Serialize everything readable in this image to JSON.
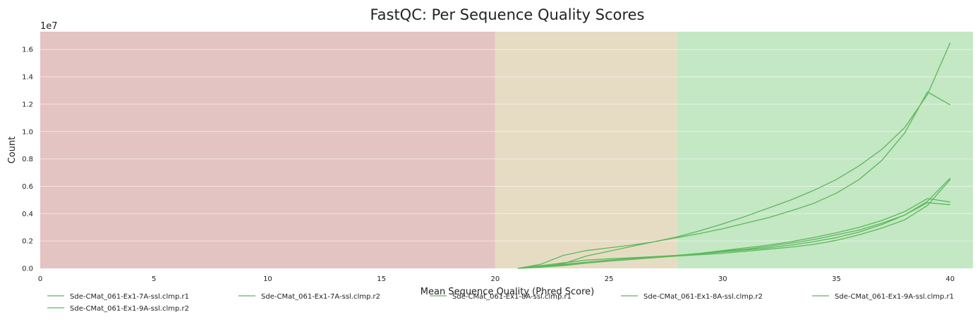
{
  "chart_data": {
    "type": "line",
    "title": "FastQC: Per Sequence Quality Scores",
    "xlabel": "Mean Sequence Quality (Phred Score)",
    "ylabel": "Count",
    "y_offset_label": "1e7",
    "xlim": [
      0,
      41
    ],
    "ylim": [
      0,
      17300000
    ],
    "x_ticks": [
      0,
      5,
      10,
      15,
      20,
      25,
      30,
      35,
      40
    ],
    "y_ticks": [
      0,
      2000000,
      4000000,
      6000000,
      8000000,
      10000000,
      12000000,
      14000000,
      16000000
    ],
    "y_tick_labels": [
      "0.0",
      "0.2",
      "0.4",
      "0.6",
      "0.8",
      "1.0",
      "1.2",
      "1.4",
      "1.6"
    ],
    "grid": true,
    "legend_position": "bottom",
    "background_bands": [
      {
        "from": 0,
        "to": 20,
        "color": "#e4c3c3"
      },
      {
        "from": 20,
        "to": 28,
        "color": "#e6dcc4"
      },
      {
        "from": 28,
        "to": 41,
        "color": "#c4e7c4"
      }
    ],
    "line_color": "#5cb85c",
    "series": [
      {
        "name": "Sde-CMat_061-Ex1-7A-ssl.clmp.r1",
        "x": [
          21,
          22,
          23,
          24,
          25,
          26,
          27,
          28,
          29,
          30,
          31,
          32,
          33,
          34,
          35,
          36,
          37,
          38,
          39,
          40
        ],
        "y": [
          0,
          200000,
          400000,
          600000,
          700000,
          780000,
          860000,
          950000,
          1050000,
          1200000,
          1350000,
          1500000,
          1700000,
          1950000,
          2250000,
          2650000,
          3200000,
          3900000,
          4900000,
          6600000
        ]
      },
      {
        "name": "Sde-CMat_061-Ex1-7A-ssl.clmp.r2",
        "x": [
          21,
          22,
          23,
          24,
          25,
          26,
          27,
          28,
          29,
          30,
          31,
          32,
          33,
          34,
          35,
          36,
          37,
          38,
          39,
          40
        ],
        "y": [
          0,
          150000,
          300000,
          450000,
          600000,
          720000,
          820000,
          900000,
          1000000,
          1100000,
          1250000,
          1400000,
          1550000,
          1750000,
          2050000,
          2450000,
          2950000,
          3550000,
          4600000,
          6500000
        ]
      },
      {
        "name": "Sde-CMat_061-Ex1-8A-ssl.clmp.r1",
        "x": [
          21,
          22,
          23,
          24,
          25,
          26,
          27,
          28,
          29,
          30,
          31,
          32,
          33,
          34,
          35,
          36,
          37,
          38,
          39,
          40
        ],
        "y": [
          0,
          100000,
          350000,
          900000,
          1250000,
          1600000,
          1950000,
          2300000,
          2750000,
          3250000,
          3800000,
          4400000,
          5000000,
          5700000,
          6500000,
          7500000,
          8700000,
          10300000,
          12700000,
          16500000
        ]
      },
      {
        "name": "Sde-CMat_061-Ex1-8A-ssl.clmp.r2",
        "x": [
          21,
          22,
          23,
          24,
          25,
          26,
          27,
          28,
          29,
          30,
          31,
          32,
          33,
          34,
          35,
          36,
          37,
          38,
          39,
          40
        ],
        "y": [
          0,
          300000,
          950000,
          1300000,
          1500000,
          1700000,
          1950000,
          2250000,
          2550000,
          2900000,
          3300000,
          3700000,
          4200000,
          4750000,
          5500000,
          6500000,
          7900000,
          9900000,
          12900000,
          11950000
        ]
      },
      {
        "name": "Sde-CMat_061-Ex1-9A-ssl.clmp.r1",
        "x": [
          21,
          22,
          23,
          24,
          25,
          26,
          27,
          28,
          29,
          30,
          31,
          32,
          33,
          34,
          35,
          36,
          37,
          38,
          39,
          40
        ],
        "y": [
          0,
          100000,
          250000,
          450000,
          600000,
          720000,
          840000,
          950000,
          1100000,
          1300000,
          1500000,
          1700000,
          1950000,
          2250000,
          2600000,
          3000000,
          3500000,
          4150000,
          5100000,
          4850000
        ]
      },
      {
        "name": "Sde-CMat_061-Ex1-9A-ssl.clmp.r2",
        "x": [
          21,
          22,
          23,
          24,
          25,
          26,
          27,
          28,
          29,
          30,
          31,
          32,
          33,
          34,
          35,
          36,
          37,
          38,
          39,
          40
        ],
        "y": [
          0,
          80000,
          200000,
          380000,
          520000,
          650000,
          780000,
          900000,
          1050000,
          1250000,
          1400000,
          1600000,
          1850000,
          2100000,
          2450000,
          2800000,
          3300000,
          3900000,
          4800000,
          4650000
        ]
      }
    ]
  }
}
